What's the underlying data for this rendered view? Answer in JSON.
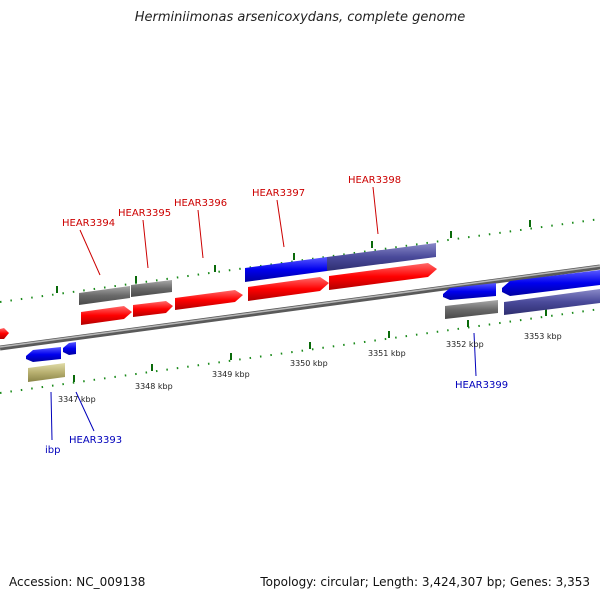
{
  "title": "Herminiimonas arsenicoxydans, complete genome",
  "footer": {
    "accession": "Accession: NC_009138",
    "topology": "Topology: circular; Length: 3,424,307 bp; Genes: 3,353"
  },
  "kbp_labels": [
    "3347 kbp",
    "3348 kbp",
    "3349 kbp",
    "3350 kbp",
    "3351 kbp",
    "3352 kbp",
    "3353 kbp"
  ],
  "gene_labels": {
    "hear3393": "HEAR3393",
    "ibp": "ibp",
    "hear3394": "HEAR3394",
    "hear3395": "HEAR3395",
    "hear3396": "HEAR3396",
    "hear3397": "HEAR3397",
    "hear3398": "HEAR3398",
    "hear3399": "HEAR3399"
  },
  "colors": {
    "red_gene": "#ff0000",
    "blue_gene": "#0000ee",
    "purple_gene": "#4a4a9a",
    "gray_gene": "#6a6a6a",
    "olive_gene": "#b8b070",
    "tick_green": "#006600",
    "backbone": "#8a8a8a"
  }
}
